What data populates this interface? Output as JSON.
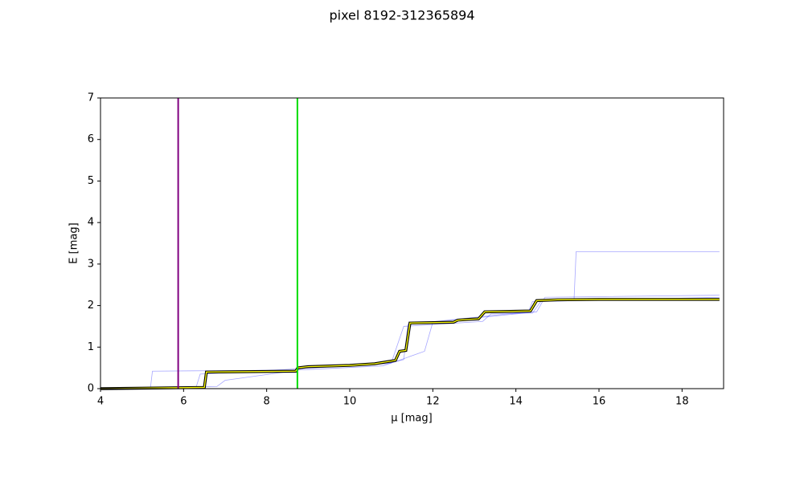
{
  "chart_data": {
    "type": "line",
    "title": "pixel 8192-312365894",
    "xlabel": "μ [mag]",
    "ylabel": "E [mag]",
    "xlim": [
      4,
      19
    ],
    "ylim": [
      0,
      7
    ],
    "xticks": [
      4,
      6,
      8,
      10,
      12,
      14,
      16,
      18
    ],
    "yticks": [
      0,
      1,
      2,
      3,
      4,
      5,
      6,
      7
    ],
    "vlines": [
      {
        "x": 5.87,
        "color": "#800080"
      },
      {
        "x": 8.74,
        "color": "#00dd00"
      }
    ],
    "samples": [
      {
        "color": "#0000ff",
        "x": [
          4,
          5.2,
          5.25,
          8.7,
          9.0,
          10.9,
          11.3,
          11.4,
          14.3,
          14.4,
          15.4,
          15.45,
          18.9
        ],
        "values": [
          0.0,
          0.0,
          0.42,
          0.45,
          0.52,
          0.6,
          0.7,
          1.55,
          1.85,
          2.1,
          2.15,
          3.3,
          3.3
        ]
      },
      {
        "color": "#0000ff",
        "x": [
          4,
          6.8,
          7.0,
          8.8,
          10.8,
          11.1,
          11.8,
          12.0,
          14.5,
          14.7,
          18.9
        ],
        "values": [
          0.0,
          0.05,
          0.2,
          0.45,
          0.55,
          0.65,
          0.9,
          1.6,
          1.85,
          2.2,
          2.25
        ]
      },
      {
        "color": "#0000ff",
        "x": [
          4,
          6.3,
          6.4,
          8.8,
          11.0,
          11.3,
          13.2,
          13.4,
          14.4,
          14.6,
          18.9
        ],
        "values": [
          0.0,
          0.03,
          0.35,
          0.48,
          0.62,
          1.5,
          1.62,
          1.8,
          1.82,
          2.1,
          2.2
        ]
      }
    ],
    "series": [
      {
        "color": "#ffff00",
        "x": [
          4,
          6.5,
          6.55,
          8.7,
          8.75,
          9.0,
          10.0,
          10.6,
          11.1,
          11.2,
          11.35,
          11.45,
          12.5,
          12.6,
          12.9,
          13.1,
          13.25,
          14.35,
          14.5,
          15.0,
          16.0,
          18.9
        ],
        "values": [
          0.0,
          0.03,
          0.4,
          0.42,
          0.5,
          0.53,
          0.56,
          0.6,
          0.68,
          0.9,
          0.92,
          1.58,
          1.6,
          1.65,
          1.67,
          1.68,
          1.85,
          1.87,
          2.12,
          2.14,
          2.15,
          2.15
        ]
      }
    ]
  }
}
